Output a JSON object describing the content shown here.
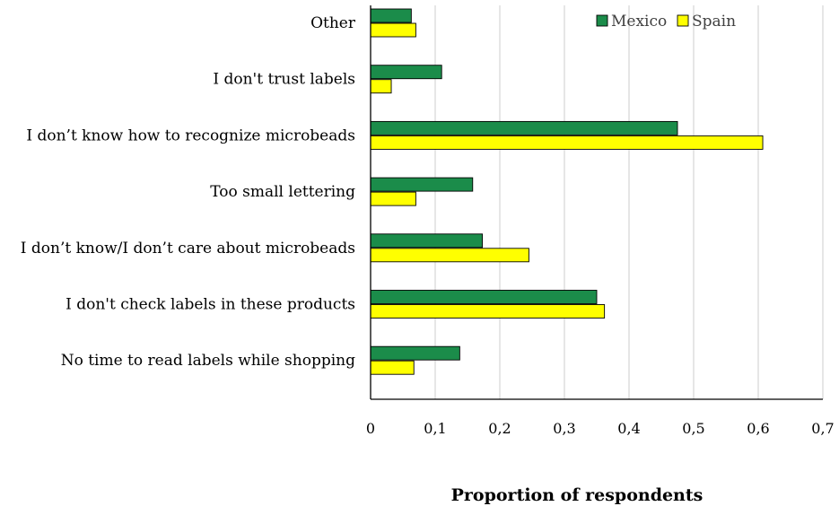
{
  "chart_data": {
    "type": "bar",
    "orientation": "horizontal",
    "title": "",
    "xlabel": "Proportion of respondents",
    "ylabel": "",
    "xlim": [
      0,
      0.7
    ],
    "xticks": [
      "0",
      "0,1",
      "0,2",
      "0,3",
      "0,4",
      "0,5",
      "0,6",
      "0,7"
    ],
    "grid": "vertical",
    "legend_position": "top-right",
    "categories": [
      "Other",
      "I don't trust labels",
      "I don’t know how to recognize microbeads",
      "Too small lettering",
      "I don’t know/I don’t care about microbeads",
      "I don't check labels in these products",
      "No time to read labels while shopping"
    ],
    "series": [
      {
        "name": "Mexico",
        "color": "#1b8c4a",
        "values": [
          0.063,
          0.11,
          0.475,
          0.158,
          0.173,
          0.35,
          0.138
        ]
      },
      {
        "name": "Spain",
        "color": "#ffff00",
        "values": [
          0.07,
          0.032,
          0.607,
          0.07,
          0.245,
          0.362,
          0.067
        ]
      }
    ]
  }
}
